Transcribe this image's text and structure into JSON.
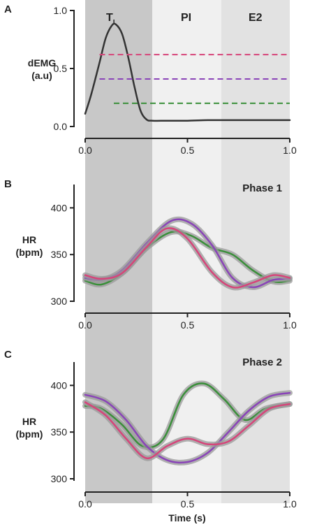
{
  "figure": {
    "background": "#ffffff"
  },
  "phase_regions": [
    {
      "label": "T",
      "subscript": "I",
      "range": [
        0.0,
        0.33
      ],
      "color": "#c8c8c8"
    },
    {
      "label": "PI",
      "range": [
        0.33,
        0.67
      ],
      "color": "#f0f0f0"
    },
    {
      "label": "E2",
      "range": [
        0.67,
        1.0
      ],
      "color": "#e2e2e2"
    }
  ],
  "colors": {
    "green": "#3a8f3a",
    "purple": "#8a44b8",
    "pink": "#d6457a",
    "band": "#9a9a9a",
    "black": "#333333"
  },
  "chart_data": [
    {
      "panel": "A",
      "type": "line",
      "ylabel": [
        "dEMG",
        "(a.u)"
      ],
      "xlim": [
        0,
        1.0
      ],
      "ylim": [
        0,
        1.0
      ],
      "xticks": [
        "0.0",
        "0.5",
        "1.0"
      ],
      "yticks": [
        "0.0",
        "0.5",
        "1.0"
      ],
      "series": [
        {
          "style": "solid",
          "color": "#333333",
          "x": [
            0.0,
            0.03,
            0.07,
            0.1,
            0.13,
            0.15,
            0.18,
            0.21,
            0.24,
            0.27,
            0.3,
            0.33,
            0.4,
            0.5,
            0.6,
            0.7,
            0.8,
            0.9,
            1.0
          ],
          "y": [
            0.11,
            0.28,
            0.55,
            0.76,
            0.87,
            0.88,
            0.8,
            0.6,
            0.35,
            0.14,
            0.06,
            0.05,
            0.05,
            0.05,
            0.055,
            0.055,
            0.055,
            0.055,
            0.055
          ]
        },
        {
          "style": "dashed",
          "color": "#d6457a",
          "x": [
            0.07,
            1.0
          ],
          "y": [
            0.62,
            0.62
          ]
        },
        {
          "style": "dashed",
          "color": "#8a44b8",
          "x": [
            0.07,
            1.0
          ],
          "y": [
            0.41,
            0.41
          ]
        },
        {
          "style": "dashed",
          "color": "#3a8f3a",
          "x": [
            0.14,
            1.0
          ],
          "y": [
            0.2,
            0.2
          ]
        }
      ]
    },
    {
      "panel": "B",
      "type": "line",
      "title": "Phase 1",
      "ylabel": [
        "HR",
        "(bpm)"
      ],
      "xlim": [
        0,
        1.0
      ],
      "ylim": [
        300,
        425
      ],
      "xticks": [
        "0.0",
        "0.5",
        "1.0"
      ],
      "yticks": [
        "300",
        "350",
        "400"
      ],
      "series": [
        {
          "color": "#3a8f3a",
          "x": [
            0,
            0.08,
            0.18,
            0.3,
            0.42,
            0.52,
            0.62,
            0.72,
            0.82,
            0.92,
            1.0
          ],
          "y": [
            322,
            318,
            330,
            357,
            374,
            370,
            357,
            350,
            333,
            321,
            322
          ]
        },
        {
          "color": "#8a44b8",
          "x": [
            0,
            0.08,
            0.18,
            0.3,
            0.42,
            0.52,
            0.62,
            0.72,
            0.82,
            0.92,
            1.0
          ],
          "y": [
            325,
            323,
            333,
            362,
            386,
            383,
            360,
            325,
            315,
            323,
            324
          ]
        },
        {
          "color": "#d6457a",
          "x": [
            0,
            0.08,
            0.18,
            0.3,
            0.4,
            0.5,
            0.62,
            0.72,
            0.82,
            0.92,
            1.0
          ],
          "y": [
            328,
            324,
            330,
            358,
            378,
            367,
            331,
            315,
            320,
            328,
            325
          ]
        }
      ]
    },
    {
      "panel": "C",
      "type": "line",
      "title": "Phase 2",
      "ylabel": [
        "HR",
        "(bpm)"
      ],
      "xlabel": "Time (s)",
      "xlim": [
        0,
        1.0
      ],
      "ylim": [
        300,
        425
      ],
      "xticks": [
        "0.0",
        "0.5",
        "1.0"
      ],
      "yticks": [
        "300",
        "350",
        "400"
      ],
      "series": [
        {
          "color": "#3a8f3a",
          "x": [
            0,
            0.08,
            0.18,
            0.28,
            0.38,
            0.48,
            0.58,
            0.68,
            0.78,
            0.88,
            1.0
          ],
          "y": [
            378,
            375,
            358,
            335,
            342,
            390,
            402,
            385,
            363,
            375,
            380
          ]
        },
        {
          "color": "#8a44b8",
          "x": [
            0,
            0.1,
            0.2,
            0.3,
            0.4,
            0.5,
            0.6,
            0.7,
            0.8,
            0.9,
            1.0
          ],
          "y": [
            390,
            383,
            363,
            335,
            320,
            318,
            328,
            350,
            373,
            388,
            392
          ]
        },
        {
          "color": "#d6457a",
          "x": [
            0,
            0.1,
            0.2,
            0.3,
            0.4,
            0.5,
            0.6,
            0.7,
            0.8,
            0.9,
            1.0
          ],
          "y": [
            382,
            368,
            343,
            322,
            335,
            343,
            337,
            340,
            357,
            375,
            380
          ]
        }
      ]
    }
  ]
}
